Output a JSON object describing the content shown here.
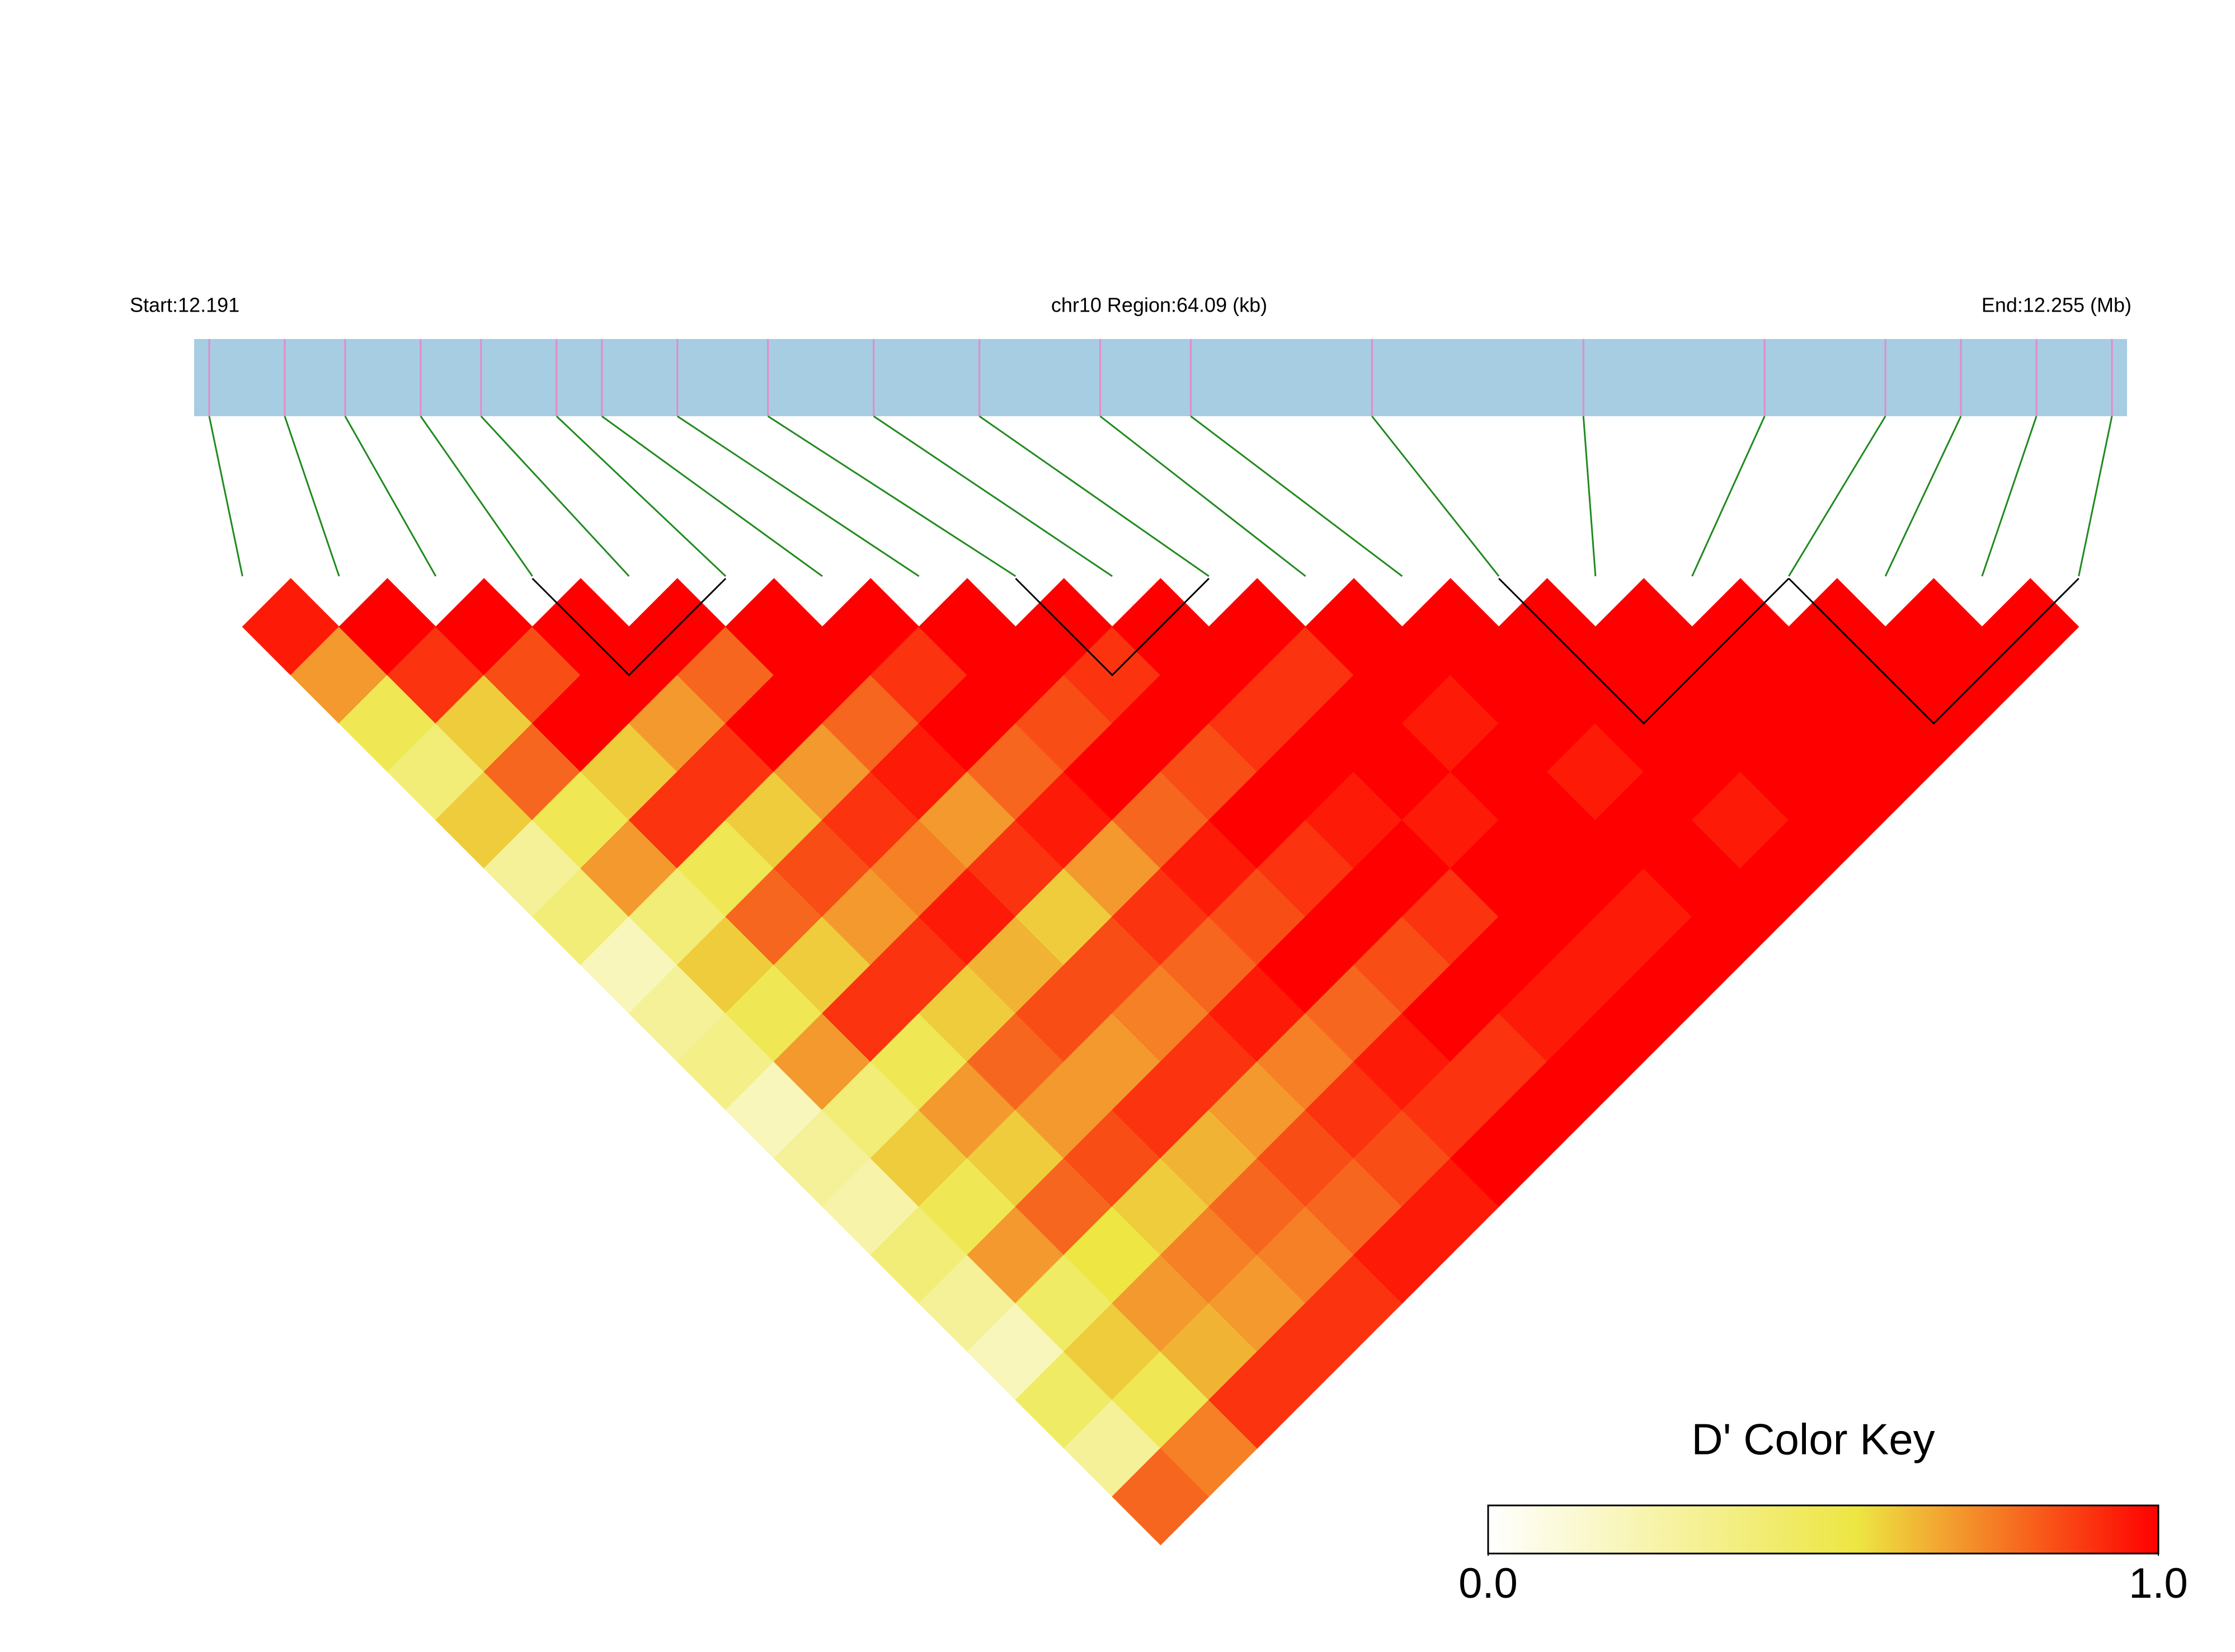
{
  "chart_data": {
    "type": "ld_heatmap",
    "region": {
      "start": {
        "value": 12.191,
        "label": "Start:12.191"
      },
      "end": {
        "value": 12.255,
        "label": "End:12.255 (Mb)"
      },
      "title": "chr10 Region:64.09 (kb)"
    },
    "snp_positions": [
      12.1915,
      12.194,
      12.196,
      12.1985,
      12.2005,
      12.203,
      12.2045,
      12.207,
      12.21,
      12.2135,
      12.217,
      12.221,
      12.224,
      12.23,
      12.237,
      12.243,
      12.247,
      12.2495,
      12.252,
      12.2545
    ],
    "snp_color": "#e78ac3",
    "bar_color": "#a6cde2",
    "link_color": "#1f8a1f",
    "dprime": [
      [
        0.95,
        0.7,
        0.5,
        0.4,
        0.6,
        0.3,
        0.4,
        0.2,
        0.3,
        0.35,
        0.2,
        0.3,
        0.25,
        0.4,
        0.3,
        0.2,
        0.45,
        0.3,
        0.8
      ],
      [
        1,
        0.9,
        0.6,
        0.8,
        0.5,
        0.7,
        0.4,
        0.6,
        0.5,
        0.7,
        0.4,
        0.6,
        0.5,
        0.7,
        0.45,
        0.6,
        0.5,
        0.75
      ],
      [
        1,
        0.85,
        1,
        0.6,
        0.9,
        0.5,
        0.8,
        0.6,
        0.9,
        0.5,
        0.7,
        0.6,
        0.8,
        0.55,
        0.7,
        0.65,
        0.9
      ],
      [
        1,
        1,
        0.7,
        0.9,
        0.6,
        0.85,
        0.7,
        0.9,
        0.6,
        0.8,
        0.7,
        0.85,
        0.6,
        0.75,
        0.7,
        0.9
      ],
      [
        1,
        0.8,
        1,
        0.7,
        0.9,
        0.75,
        0.95,
        0.65,
        0.85,
        0.7,
        0.9,
        0.65,
        0.8,
        0.75,
        0.9
      ],
      [
        1,
        1,
        0.8,
        0.95,
        0.7,
        0.9,
        0.6,
        0.85,
        0.75,
        0.9,
        0.7,
        0.85,
        0.8,
        0.95
      ],
      [
        1,
        0.9,
        1,
        0.8,
        0.95,
        0.7,
        0.9,
        0.8,
        0.95,
        0.75,
        0.9,
        0.85,
        0.95
      ],
      [
        1,
        1,
        0.85,
        1,
        0.8,
        0.95,
        0.85,
        1,
        0.8,
        0.95,
        0.9,
        1
      ],
      [
        1,
        0.9,
        1,
        0.85,
        1,
        0.9,
        1,
        0.85,
        1,
        0.9,
        1
      ],
      [
        1,
        1,
        0.9,
        1,
        0.95,
        1,
        0.9,
        1,
        0.95,
        1
      ],
      [
        1,
        0.9,
        1,
        1,
        0.95,
        1,
        1,
        0.95,
        1
      ],
      [
        1,
        1,
        0.95,
        1,
        1,
        1,
        0.95,
        1
      ],
      [
        1,
        1,
        1,
        0.95,
        1,
        1,
        1
      ],
      [
        1,
        1,
        1,
        1,
        0.95,
        1
      ],
      [
        1,
        1,
        1,
        1,
        1
      ],
      [
        1,
        1,
        1,
        1
      ],
      [
        1,
        1,
        1
      ],
      [
        1,
        1
      ],
      [
        1
      ]
    ],
    "blocks": [
      {
        "start": 3,
        "end": 5
      },
      {
        "start": 8,
        "end": 10
      },
      {
        "start": 13,
        "end": 16
      },
      {
        "start": 16,
        "end": 19
      }
    ],
    "color_key": {
      "title": "D' Color Key",
      "stops": [
        {
          "offset": 0,
          "color": "#ffffff"
        },
        {
          "offset": 0.55,
          "color": "#ede643"
        },
        {
          "offset": 1,
          "color": "#ff0000"
        }
      ],
      "ticks": [
        {
          "value": 0,
          "label": "0.0"
        },
        {
          "value": 1,
          "label": "1.0"
        }
      ]
    }
  }
}
